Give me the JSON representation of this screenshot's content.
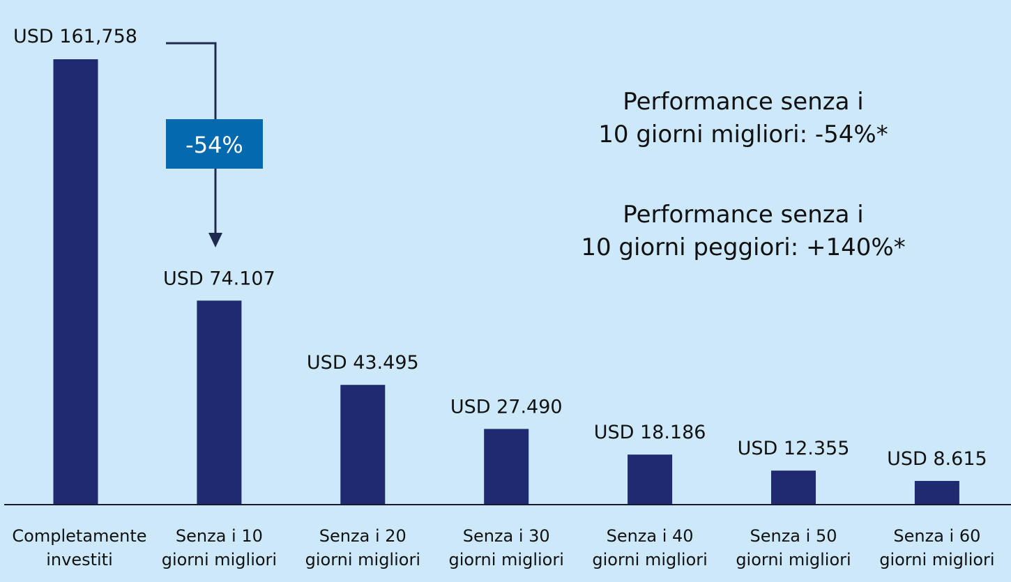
{
  "colors": {
    "background": "#cce8f9",
    "bar": "#1f2a70",
    "badge": "#0569b0",
    "badge_text": "#ffffff",
    "text": "#111111",
    "axis": "#1a1a2e",
    "arrow": "#1f2a50"
  },
  "annotation": {
    "drop_label": "-54%",
    "perf_best_line1": "Performance senza i",
    "perf_best_line2": "10 giorni migliori: -54%*",
    "perf_worst_line1": "Performance senza i",
    "perf_worst_line2": "10 giorni peggiori: +140%*"
  },
  "chart_data": {
    "type": "bar",
    "title": "",
    "xlabel": "",
    "ylabel": "",
    "ylim": [
      0,
      161758
    ],
    "grid": false,
    "legend": "none",
    "categories": [
      [
        "Completamente",
        "investiti"
      ],
      [
        "Senza i 10",
        "giorni migliori"
      ],
      [
        "Senza i 20",
        "giorni migliori"
      ],
      [
        "Senza i 30",
        "giorni migliori"
      ],
      [
        "Senza i 40",
        "giorni migliori"
      ],
      [
        "Senza i 50",
        "giorni migliori"
      ],
      [
        "Senza i 60",
        "giorni migliori"
      ]
    ],
    "values": [
      161758,
      74107,
      43495,
      27490,
      18186,
      12355,
      8615
    ],
    "data_labels": [
      "USD 161,758",
      "USD 74.107",
      "USD 43.495",
      "USD 27.490",
      "USD 18.186",
      "USD 12.355",
      "USD 8.615"
    ]
  }
}
